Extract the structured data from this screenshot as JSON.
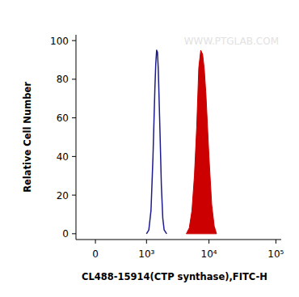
{
  "chart_data": {
    "type": "line",
    "x_label": "CL488-15914(CTP synthase),FITC-H",
    "y_label": "Relative Cell Number",
    "annotations": [
      "WWW.PTGLAB.COM"
    ],
    "log": "x",
    "xlim": [
      -200,
      120000
    ],
    "xticks": [
      0,
      {
        "value": 1000,
        "label": "10³"
      },
      {
        "value": 10000,
        "label": "10⁴"
      },
      {
        "value": 100000,
        "label": "10⁵"
      }
    ],
    "ylim": [
      -3,
      103
    ],
    "yticks": [
      0,
      20,
      40,
      60,
      80,
      100
    ],
    "grid": false,
    "series": [
      {
        "type": "line",
        "color": "#1c1c8f",
        "x": [
          1000,
          1100,
          1200,
          1300,
          1400,
          1450,
          1500,
          1550,
          1600,
          1700,
          1800,
          1900,
          2000,
          2200
        ],
        "values": [
          0,
          2,
          12,
          40,
          75,
          88,
          95,
          94,
          85,
          55,
          25,
          8,
          2,
          0
        ]
      },
      {
        "type": "area",
        "color": "#cc0000",
        "x": [
          4500,
          5000,
          5500,
          6000,
          6500,
          7000,
          7500,
          8000,
          8500,
          9000,
          10000,
          11000,
          12000,
          13000
        ],
        "values": [
          0,
          3,
          12,
          30,
          55,
          86,
          95,
          93,
          85,
          72,
          40,
          15,
          4,
          0
        ]
      }
    ]
  }
}
